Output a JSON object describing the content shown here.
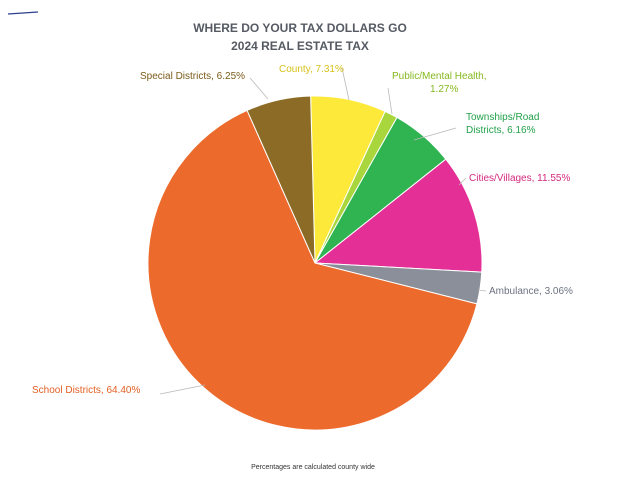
{
  "chart_data": {
    "type": "pie",
    "title": "WHERE DO YOUR TAX DOLLARS GO",
    "subtitle": "2024 REAL ESTATE TAX",
    "footnote": "Percentages are calculated county wide",
    "slices": [
      {
        "label": "County",
        "label_text": "County, 7.31%",
        "value": 7.31,
        "color": "#fde93a",
        "text_color": "#d8c21a"
      },
      {
        "label": "Public/Mental Health",
        "label_text": "Public/Mental Health, 1.27%",
        "value": 1.27,
        "color": "#a8d63c",
        "text_color": "#86b81f"
      },
      {
        "label": "Townships/Road Districts",
        "label_text": "Townships/Road Districts, 6.16%",
        "value": 6.16,
        "color": "#2fb451",
        "text_color": "#22a14a"
      },
      {
        "label": "Cities/Villages",
        "label_text": "Cities/Villages, 11.55%",
        "value": 11.55,
        "color": "#e32f96",
        "text_color": "#d4297f"
      },
      {
        "label": "Ambulance",
        "label_text": "Ambulance, 3.06%",
        "value": 3.06,
        "color": "#8b8f9a",
        "text_color": "#6c7280"
      },
      {
        "label": "School Districts",
        "label_text": "School Districts, 64.40%",
        "value": 64.4,
        "color": "#ec6a2b",
        "text_color": "#e35f24"
      },
      {
        "label": "Special Districts",
        "label_text": "Special Districts, 6.25%",
        "value": 6.25,
        "color": "#8b6b25",
        "text_color": "#7a5a1a"
      }
    ]
  }
}
